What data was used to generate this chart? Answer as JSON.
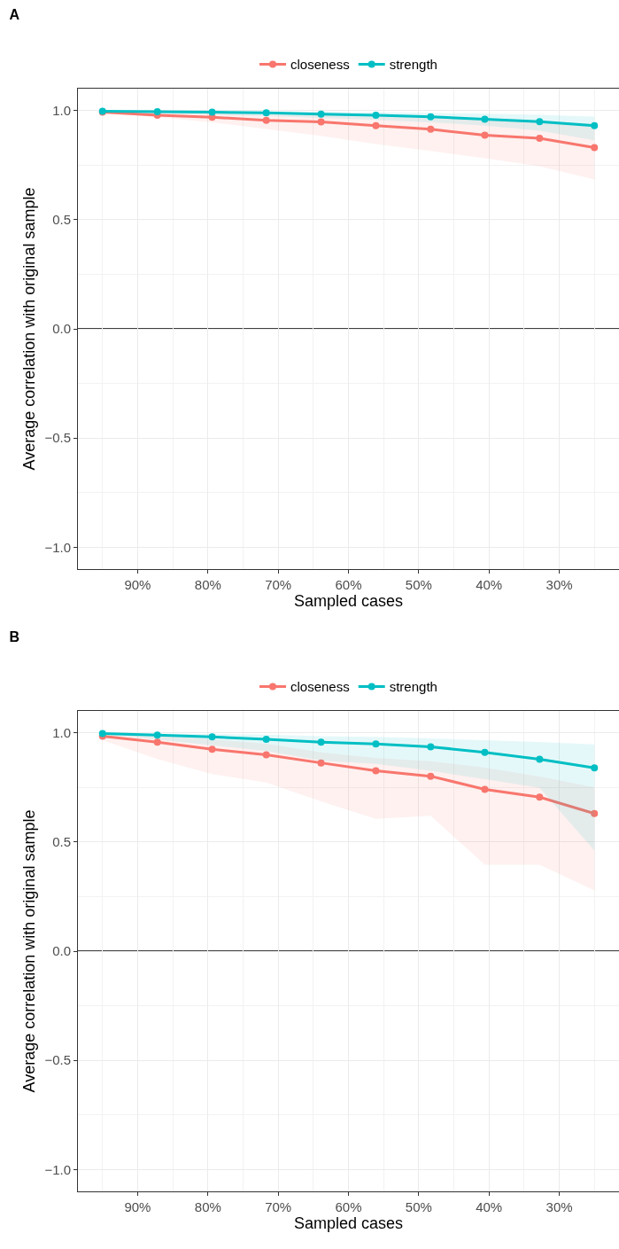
{
  "chart_data": [
    {
      "type": "line",
      "title": "A",
      "xlabel": "Sampled cases",
      "ylabel": "Average correlation with original sample",
      "x": [
        95,
        87.2,
        79.4,
        71.7,
        63.9,
        56.1,
        48.3,
        40.6,
        32.8,
        25
      ],
      "xlim": [
        98.5,
        21.5
      ],
      "xticks": [
        {
          "value": 90,
          "label": "90%"
        },
        {
          "value": 80,
          "label": "80%"
        },
        {
          "value": 70,
          "label": "70%"
        },
        {
          "value": 60,
          "label": "60%"
        },
        {
          "value": 50,
          "label": "50%"
        },
        {
          "value": 40,
          "label": "40%"
        },
        {
          "value": 30,
          "label": "30%"
        }
      ],
      "ylim": [
        -1.1,
        1.1
      ],
      "yticks": [
        {
          "value": -1,
          "label": "−1.0"
        },
        {
          "value": -0.5,
          "label": "−0.5"
        },
        {
          "value": 0,
          "label": "0.0"
        },
        {
          "value": 0.5,
          "label": "0.5"
        },
        {
          "value": 1,
          "label": "1.0"
        }
      ],
      "grid": true,
      "legend": "top",
      "marker": "circle",
      "line_style": "solid",
      "ref_lines": [
        {
          "axis": "y",
          "value": 0,
          "color": "#000000"
        }
      ],
      "series": [
        {
          "name": "closeness",
          "color": "#f8766d",
          "values": [
            0.992,
            0.978,
            0.969,
            0.955,
            0.948,
            0.931,
            0.914,
            0.887,
            0.873,
            0.83
          ],
          "lower": [
            0.99,
            0.969,
            0.946,
            0.915,
            0.884,
            0.846,
            0.815,
            0.781,
            0.745,
            0.684
          ],
          "upper": [
            1.0,
            0.995,
            0.99,
            0.985,
            0.98,
            0.975,
            0.97,
            0.96,
            0.95,
            0.94
          ]
        },
        {
          "name": "strength",
          "color": "#00bfc4",
          "values": [
            0.997,
            0.994,
            0.992,
            0.989,
            0.983,
            0.978,
            0.971,
            0.96,
            0.949,
            0.931
          ],
          "lower": [
            0.995,
            0.985,
            0.98,
            0.974,
            0.966,
            0.957,
            0.946,
            0.931,
            0.907,
            0.864
          ],
          "upper": [
            1.0,
            0.998,
            0.997,
            0.995,
            0.994,
            0.992,
            0.988,
            0.985,
            0.98,
            0.972
          ]
        }
      ]
    },
    {
      "type": "line",
      "title": "B",
      "xlabel": "Sampled cases",
      "ylabel": "Average correlation with original sample",
      "x": [
        95,
        87.2,
        79.4,
        71.7,
        63.9,
        56.1,
        48.3,
        40.6,
        32.8,
        25
      ],
      "xlim": [
        98.5,
        21.5
      ],
      "xticks": [
        {
          "value": 90,
          "label": "90%"
        },
        {
          "value": 80,
          "label": "80%"
        },
        {
          "value": 70,
          "label": "70%"
        },
        {
          "value": 60,
          "label": "60%"
        },
        {
          "value": 50,
          "label": "50%"
        },
        {
          "value": 40,
          "label": "40%"
        },
        {
          "value": 30,
          "label": "30%"
        }
      ],
      "ylim": [
        -1.1,
        1.1
      ],
      "yticks": [
        {
          "value": -1,
          "label": "−1.0"
        },
        {
          "value": -0.5,
          "label": "−0.5"
        },
        {
          "value": 0,
          "label": "0.0"
        },
        {
          "value": 0.5,
          "label": "0.5"
        },
        {
          "value": 1,
          "label": "1.0"
        }
      ],
      "grid": true,
      "legend": "top",
      "marker": "circle",
      "line_style": "solid",
      "ref_lines": [
        {
          "axis": "y",
          "value": 0,
          "color": "#000000"
        }
      ],
      "series": [
        {
          "name": "closeness",
          "color": "#f8766d",
          "values": [
            0.984,
            0.957,
            0.924,
            0.899,
            0.862,
            0.826,
            0.801,
            0.741,
            0.705,
            0.63
          ],
          "lower": [
            0.966,
            0.88,
            0.811,
            0.772,
            0.686,
            0.606,
            0.62,
            0.396,
            0.396,
            0.278
          ],
          "upper": [
            1.0,
            0.99,
            0.97,
            0.95,
            0.91,
            0.885,
            0.87,
            0.84,
            0.8,
            0.75
          ]
        },
        {
          "name": "strength",
          "color": "#00bfc4",
          "values": [
            0.997,
            0.989,
            0.981,
            0.97,
            0.957,
            0.949,
            0.936,
            0.91,
            0.879,
            0.839
          ],
          "lower": [
            0.994,
            0.969,
            0.943,
            0.916,
            0.873,
            0.857,
            0.826,
            0.787,
            0.748,
            0.461
          ],
          "upper": [
            1.0,
            0.997,
            0.994,
            0.991,
            0.984,
            0.981,
            0.974,
            0.966,
            0.958,
            0.947
          ]
        }
      ]
    }
  ]
}
